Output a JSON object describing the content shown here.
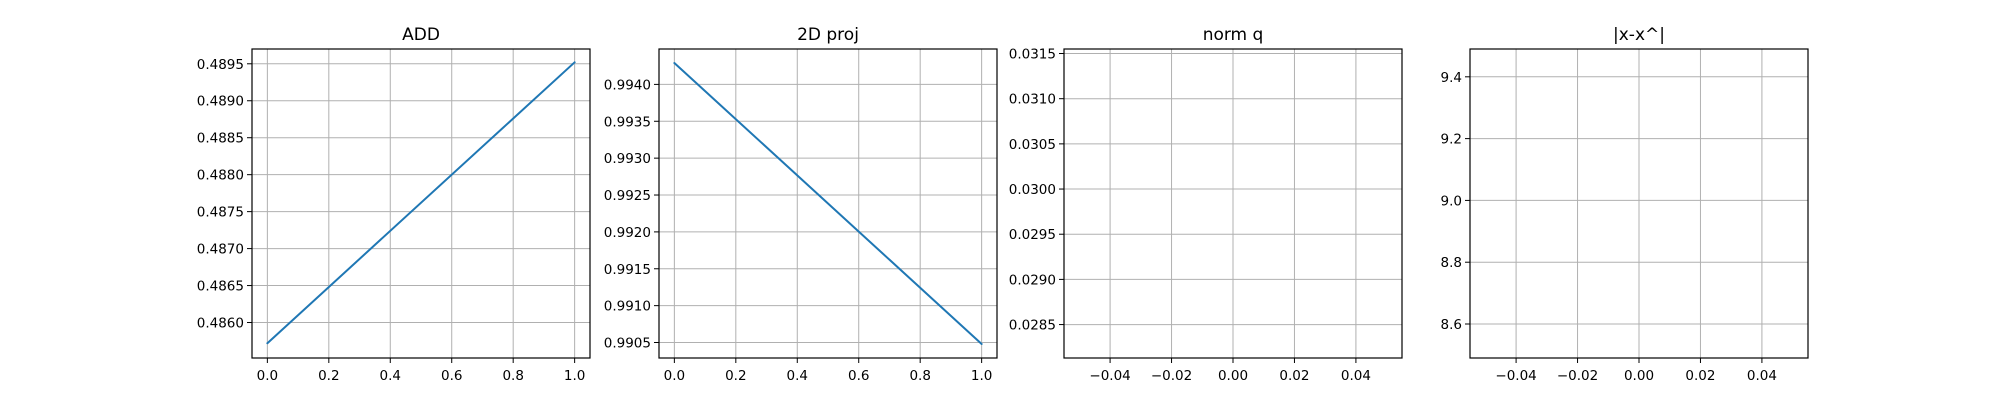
{
  "chart_data": [
    {
      "type": "line",
      "title": "ADD",
      "xlabel": "",
      "ylabel": "",
      "xlim": [
        -0.05,
        1.05
      ],
      "ylim": [
        0.48552,
        0.4897
      ],
      "xticks": [
        0.0,
        0.2,
        0.4,
        0.6,
        0.8,
        1.0
      ],
      "xtick_labels": [
        "0.0",
        "0.2",
        "0.4",
        "0.6",
        "0.8",
        "1.0"
      ],
      "yticks": [
        0.486,
        0.4865,
        0.487,
        0.4875,
        0.488,
        0.4885,
        0.489,
        0.4895
      ],
      "ytick_labels": [
        "0.4860",
        "0.4865",
        "0.4870",
        "0.4875",
        "0.4880",
        "0.4885",
        "0.4890",
        "0.4895"
      ],
      "grid": true,
      "series": [
        {
          "x": [
            0,
            1
          ],
          "values": [
            0.48572,
            0.48952
          ],
          "color": "#1f77b4"
        }
      ]
    },
    {
      "type": "line",
      "title": "2D proj",
      "xlabel": "",
      "ylabel": "",
      "xlim": [
        -0.05,
        1.05
      ],
      "ylim": [
        0.99029,
        0.99448
      ],
      "xticks": [
        0.0,
        0.2,
        0.4,
        0.6,
        0.8,
        1.0
      ],
      "xtick_labels": [
        "0.0",
        "0.2",
        "0.4",
        "0.6",
        "0.8",
        "1.0"
      ],
      "yticks": [
        0.9905,
        0.991,
        0.9915,
        0.992,
        0.9925,
        0.993,
        0.9935,
        0.994
      ],
      "ytick_labels": [
        "0.9905",
        "0.9910",
        "0.9915",
        "0.9920",
        "0.9925",
        "0.9930",
        "0.9935",
        "0.9940"
      ],
      "grid": true,
      "series": [
        {
          "x": [
            0,
            1
          ],
          "values": [
            0.99429,
            0.99048
          ],
          "color": "#1f77b4"
        }
      ]
    },
    {
      "type": "line",
      "title": "norm q",
      "xlabel": "",
      "ylabel": "",
      "xlim": [
        -0.055,
        0.055
      ],
      "ylim": [
        0.02813,
        0.03155
      ],
      "xticks": [
        -0.04,
        -0.02,
        0.0,
        0.02,
        0.04
      ],
      "xtick_labels": [
        "−0.04",
        "−0.02",
        "0.00",
        "0.02",
        "0.04"
      ],
      "yticks": [
        0.0285,
        0.029,
        0.0295,
        0.03,
        0.0305,
        0.031,
        0.0315
      ],
      "ytick_labels": [
        "0.0285",
        "0.0290",
        "0.0295",
        "0.0300",
        "0.0305",
        "0.0310",
        "0.0315"
      ],
      "grid": true,
      "series": []
    },
    {
      "type": "line",
      "title": "|x-x^|",
      "xlabel": "",
      "ylabel": "",
      "xlim": [
        -0.055,
        0.055
      ],
      "ylim": [
        8.49,
        9.49
      ],
      "xticks": [
        -0.04,
        -0.02,
        0.0,
        0.02,
        0.04
      ],
      "xtick_labels": [
        "−0.04",
        "−0.02",
        "0.00",
        "0.02",
        "0.04"
      ],
      "yticks": [
        8.6,
        8.8,
        9.0,
        9.2,
        9.4
      ],
      "ytick_labels": [
        "8.6",
        "8.8",
        "9.0",
        "9.2",
        "9.4"
      ],
      "grid": true,
      "series": []
    }
  ]
}
